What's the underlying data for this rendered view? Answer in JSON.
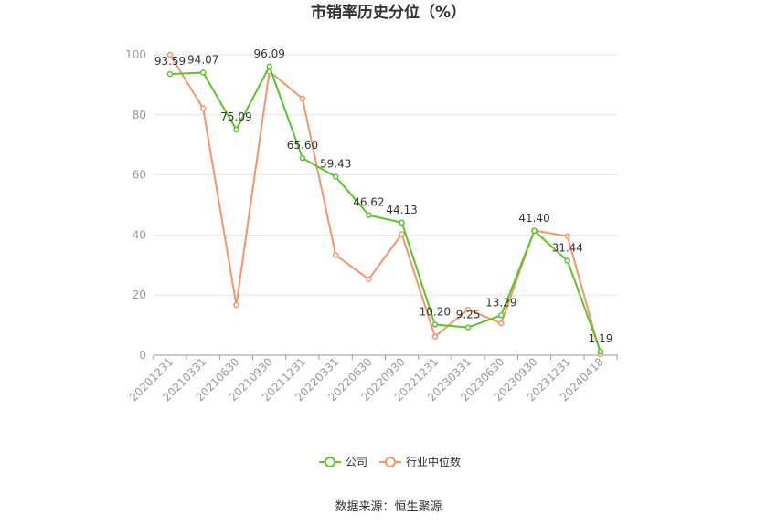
{
  "chart_data": {
    "type": "line",
    "title": "市销率历史分位（%）",
    "categories": [
      "20201231",
      "20210331",
      "20210630",
      "20210930",
      "20211231",
      "20220331",
      "20220630",
      "20220930",
      "20221231",
      "20230331",
      "20230630",
      "20230930",
      "20231231",
      "20240418"
    ],
    "ylim": [
      0,
      100
    ],
    "yticks": [
      0,
      20,
      40,
      60,
      80,
      100
    ],
    "grid": true,
    "legend_position": "bottom",
    "series": [
      {
        "name": "公司",
        "color": "#5ac42e",
        "values": [
          93.59,
          94.07,
          75.09,
          96.09,
          65.6,
          59.43,
          46.62,
          44.13,
          10.2,
          9.25,
          13.29,
          41.4,
          31.44,
          1.19
        ],
        "labels": [
          "93.59",
          "94.07",
          "75.09",
          "96.09",
          "65.60",
          "59.43",
          "46.62",
          "44.13",
          "10.20",
          "9.25",
          "13.29",
          "41.40",
          "31.44",
          "1.19"
        ]
      },
      {
        "name": "行业中位数",
        "color": "#f4956a",
        "values": [
          100,
          82.2,
          16.7,
          94.5,
          85.4,
          33.3,
          25.3,
          40.3,
          6.2,
          15.2,
          10.6,
          41.5,
          39.6,
          0.3
        ]
      }
    ],
    "source": "数据来源：恒生聚源"
  }
}
